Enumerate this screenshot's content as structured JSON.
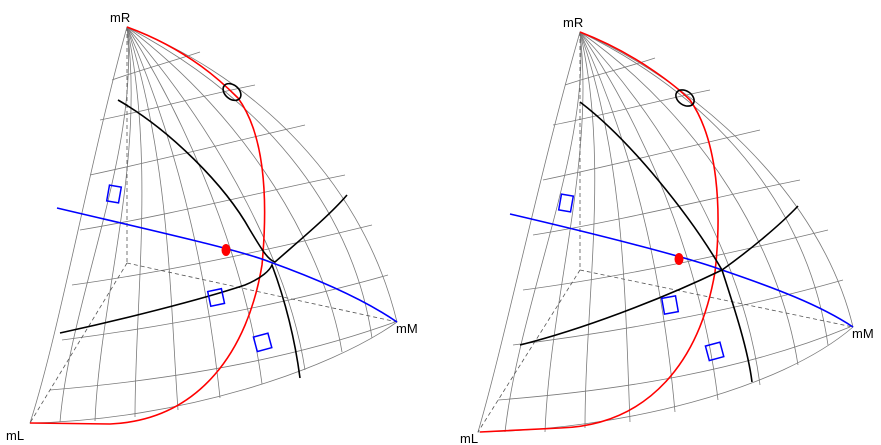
{
  "panels": [
    {
      "labels": {
        "top": "mR",
        "left": "mL",
        "right": "mM"
      },
      "colors": {
        "red_curve": "#ff0000",
        "blue_curve": "#0000ff",
        "black_curve": "#000000",
        "marker": "#ff0000",
        "grid": "#7a7a7a"
      }
    },
    {
      "labels": {
        "top": "mR",
        "left": "mL",
        "right": "mM"
      },
      "colors": {
        "red_curve": "#ff0000",
        "blue_curve": "#0000ff",
        "black_curve": "#000000",
        "marker": "#ff0000",
        "grid": "#7a7a7a"
      }
    }
  ]
}
